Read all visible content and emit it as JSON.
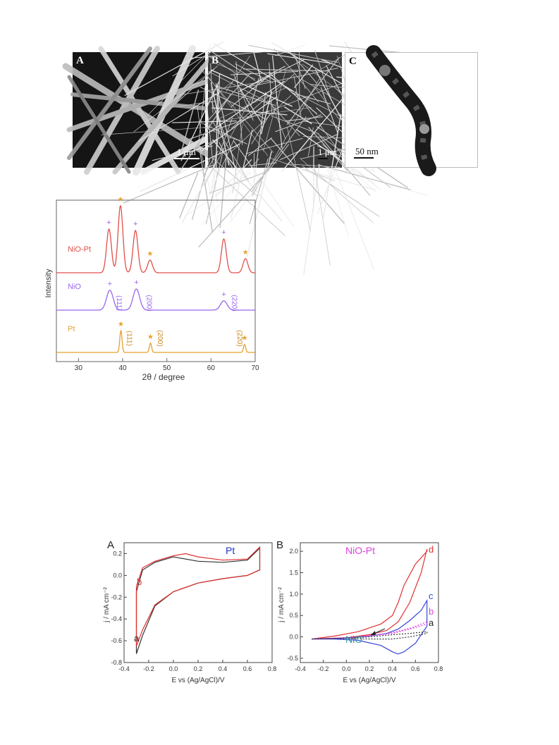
{
  "micrographs": [
    {
      "label": "A",
      "scale": "1 μm"
    },
    {
      "label": "B",
      "scale": "1 μm"
    },
    {
      "label": "C",
      "scale": "50 nm"
    }
  ],
  "colors": {
    "nio_pt": "#e0504a",
    "nio": "#9966ee",
    "pt": "#e8a030",
    "cv_red": "#e03030",
    "cv_black": "#333333",
    "cv_blue": "#3344dd",
    "cv_magenta": "#e040e0",
    "cv_teal": "#2a9a9a",
    "cv_label_blue": "#2233cc"
  },
  "chart_data": [
    {
      "type": "line",
      "xlabel": "2θ / degree",
      "ylabel": "Intensity",
      "xlim": [
        25,
        70
      ],
      "xticks": [
        30,
        40,
        50,
        60,
        70
      ],
      "series": [
        {
          "name": "NiO-Pt",
          "peaks": [
            36.9,
            39.5,
            42.9,
            46.2,
            62.9,
            67.8
          ],
          "heights": [
            0.62,
            0.95,
            0.6,
            0.18,
            0.48,
            0.2
          ]
        },
        {
          "name": "NiO",
          "peaks": [
            37.1,
            43.1,
            62.9
          ],
          "heights": [
            0.47,
            0.5,
            0.22
          ]
        },
        {
          "name": "Pt",
          "peaks": [
            39.6,
            46.3,
            67.6
          ],
          "heights": [
            0.52,
            0.22,
            0.19
          ]
        }
      ],
      "annotations": [
        "(111)",
        "(200)",
        "(220)",
        "(111)",
        "(200)",
        "(220)"
      ]
    },
    {
      "type": "line",
      "panel": "A",
      "title": "Pt",
      "xlabel": "E vs (Ag/AgCl)/V",
      "ylabel": "j / mA cm⁻²",
      "xlim": [
        -0.4,
        0.8
      ],
      "ylim": [
        -0.8,
        0.3
      ],
      "xticks": [
        "-0.4",
        "-0.2",
        "0.0",
        "0.2",
        "0.4",
        "0.6",
        "0.8"
      ],
      "yticks": [
        "0.2",
        "0.0",
        "-0.2",
        "-0.4",
        "-0.6",
        "-0.8"
      ],
      "series": [
        {
          "name": "a",
          "x": [
            -0.3,
            -0.25,
            -0.15,
            0.0,
            0.2,
            0.4,
            0.6,
            0.7,
            0.7,
            0.6,
            0.4,
            0.2,
            0.0,
            -0.15,
            -0.25,
            -0.3,
            -0.3
          ],
          "y": [
            -0.72,
            -0.55,
            -0.28,
            -0.15,
            -0.07,
            -0.03,
            0.0,
            0.05,
            0.25,
            0.14,
            0.12,
            0.13,
            0.17,
            0.12,
            0.05,
            -0.15,
            -0.72
          ]
        },
        {
          "name": "b",
          "x": [
            -0.3,
            -0.25,
            -0.15,
            0.0,
            0.2,
            0.4,
            0.6,
            0.7,
            0.7,
            0.6,
            0.4,
            0.2,
            0.1,
            0.0,
            -0.15,
            -0.25,
            -0.3,
            -0.3
          ],
          "y": [
            -0.65,
            -0.5,
            -0.27,
            -0.15,
            -0.07,
            -0.03,
            0.0,
            0.05,
            0.26,
            0.15,
            0.14,
            0.17,
            0.2,
            0.18,
            0.13,
            0.07,
            -0.1,
            -0.65
          ]
        }
      ],
      "labels": [
        "a",
        "b"
      ]
    },
    {
      "type": "line",
      "panel": "B",
      "title": "NiO-Pt",
      "xlabel": "E vs (Ag/AgCl)/V",
      "ylabel": "j / mA cm⁻²",
      "xlim": [
        -0.4,
        0.8
      ],
      "ylim": [
        -0.6,
        2.2
      ],
      "xticks": [
        "-0.4",
        "-0.2",
        "0.0",
        "0.2",
        "0.4",
        "0.6",
        "0.8"
      ],
      "yticks": [
        "2.0",
        "1.5",
        "1.0",
        "0.5",
        "0.0",
        "-0.5"
      ],
      "series": [
        {
          "name": "d",
          "x": [
            -0.3,
            0.0,
            0.2,
            0.35,
            0.45,
            0.55,
            0.65,
            0.7,
            0.7,
            0.6,
            0.5,
            0.45,
            0.4,
            0.3,
            0.1,
            -0.1,
            -0.3
          ],
          "y": [
            -0.05,
            -0.02,
            0.05,
            0.15,
            0.35,
            0.8,
            1.5,
            2.05,
            2.0,
            1.7,
            1.2,
            0.8,
            0.5,
            0.3,
            0.12,
            0.02,
            -0.05
          ]
        },
        {
          "name": "c",
          "x": [
            -0.3,
            0.0,
            0.2,
            0.35,
            0.45,
            0.55,
            0.65,
            0.7,
            0.7,
            0.6,
            0.5,
            0.45,
            0.4,
            0.3,
            0.1,
            -0.1,
            -0.3
          ],
          "y": [
            -0.05,
            -0.03,
            0.02,
            0.08,
            0.18,
            0.38,
            0.62,
            0.85,
            0.25,
            -0.15,
            -0.35,
            -0.4,
            -0.35,
            -0.2,
            -0.08,
            -0.05,
            -0.05
          ]
        },
        {
          "name": "b",
          "x": [
            -0.3,
            0.0,
            0.2,
            0.4,
            0.55,
            0.7,
            0.7,
            0.55,
            0.4,
            0.2,
            0.0,
            -0.3
          ],
          "y": [
            -0.05,
            -0.02,
            0.02,
            0.1,
            0.2,
            0.35,
            0.3,
            0.18,
            0.08,
            0.03,
            -0.02,
            -0.05
          ]
        },
        {
          "name": "a",
          "x": [
            -0.3,
            0.0,
            0.2,
            0.4,
            0.55,
            0.7,
            0.7,
            0.55,
            0.4,
            0.2,
            0.0,
            -0.3
          ],
          "y": [
            -0.05,
            -0.03,
            0.0,
            0.05,
            0.08,
            0.12,
            0.08,
            0.0,
            -0.05,
            -0.05,
            -0.04,
            -0.05
          ]
        }
      ],
      "labels": [
        "d",
        "c",
        "b",
        "a",
        "NiO"
      ]
    }
  ]
}
